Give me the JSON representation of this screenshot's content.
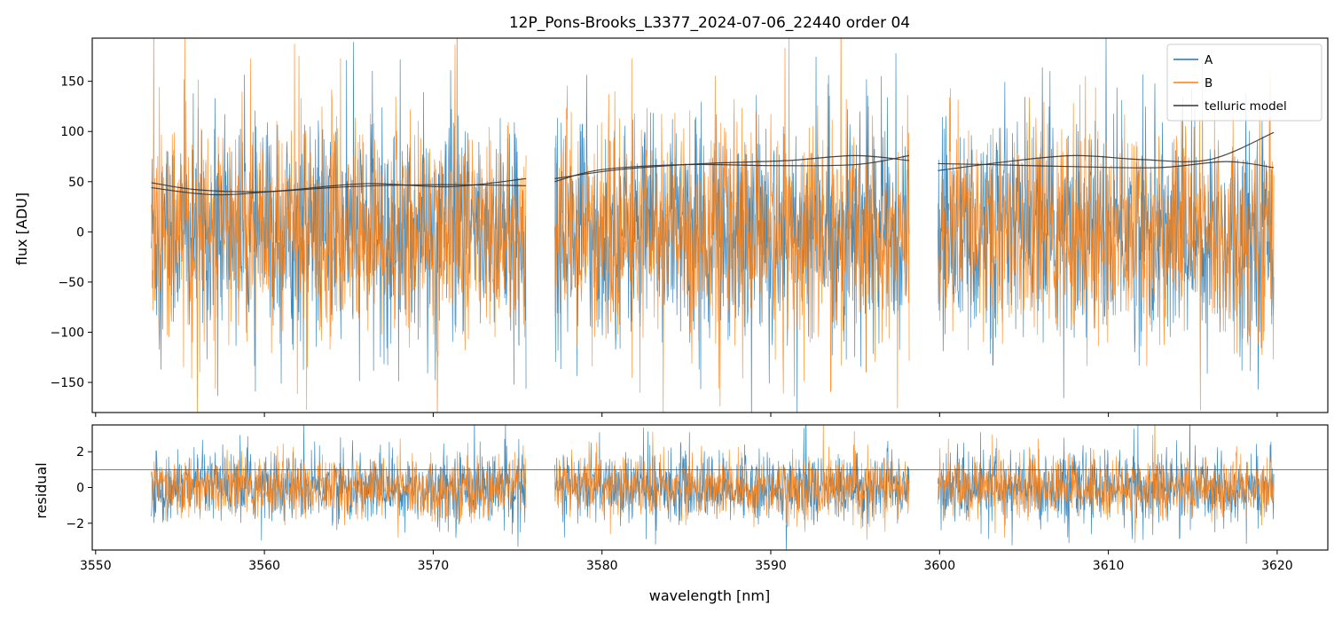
{
  "chart_data": {
    "type": "line",
    "title": "12P_Pons-Brooks_L3377_2024-07-06_22440  order 04",
    "xlabel": "wavelength [nm]",
    "xlim": [
      3549.8,
      3623.0
    ],
    "xticks": [
      3550,
      3560,
      3570,
      3580,
      3590,
      3600,
      3610,
      3620
    ],
    "xtick_labels": [
      "3550",
      "3560",
      "3570",
      "3580",
      "3590",
      "3600",
      "3610",
      "3620"
    ],
    "colors": {
      "A": "#1f77b4",
      "B": "#ff7f0e",
      "telluric": "#333333",
      "reference": "#555555"
    },
    "segments": [
      {
        "x_start": 3553.3,
        "x_end": 3575.5
      },
      {
        "x_start": 3577.2,
        "x_end": 3598.2
      },
      {
        "x_start": 3599.9,
        "x_end": 3619.8
      }
    ],
    "top": {
      "ylabel": "flux [ADU]",
      "ylim": [
        -180,
        193
      ],
      "yticks": [
        -150,
        -100,
        -50,
        0,
        50,
        100,
        150
      ],
      "ytick_labels": [
        "−150",
        "−100",
        "−50",
        "0",
        "50",
        "100",
        "150"
      ],
      "legend_position": "upper-right",
      "legend": [
        "A",
        "B",
        "telluric model"
      ],
      "series": [
        {
          "name": "A",
          "kind": "noise",
          "center": 0,
          "spread": 95,
          "color_key": "A"
        },
        {
          "name": "B",
          "kind": "noise",
          "center": 0,
          "spread": 95,
          "color_key": "B"
        },
        {
          "name": "telluric model",
          "kind": "curves",
          "color_key": "telluric",
          "curves": [
            {
              "x": [
                3553.3,
                3556,
                3560,
                3565,
                3570,
                3575.5
              ],
              "y": [
                49,
                42,
                40,
                45,
                47,
                46
              ]
            },
            {
              "x": [
                3553.3,
                3557,
                3561,
                3566,
                3571,
                3575.5
              ],
              "y": [
                44,
                37,
                41,
                48,
                45,
                53
              ]
            },
            {
              "x": [
                3577.2,
                3580,
                3585,
                3590,
                3595,
                3598.2
              ],
              "y": [
                50,
                62,
                67,
                66,
                67,
                76
              ]
            },
            {
              "x": [
                3577.2,
                3581,
                3586,
                3591,
                3595,
                3598.2
              ],
              "y": [
                53,
                62,
                68,
                71,
                76,
                71
              ]
            },
            {
              "x": [
                3599.9,
                3603,
                3608,
                3613,
                3617,
                3619.8
              ],
              "y": [
                68,
                67,
                65,
                64,
                70,
                64
              ]
            },
            {
              "x": [
                3599.9,
                3604,
                3608,
                3612,
                3616,
                3619.8
              ],
              "y": [
                61,
                70,
                76,
                72,
                72,
                99
              ]
            }
          ]
        }
      ]
    },
    "bottom": {
      "ylabel": "residual",
      "ylim": [
        -3.5,
        3.5
      ],
      "yticks": [
        -2,
        0,
        2
      ],
      "ytick_labels": [
        "−2",
        "0",
        "2"
      ],
      "reference_line": 1,
      "series": [
        {
          "name": "A",
          "kind": "noise",
          "center": 0,
          "spread": 1.7,
          "color_key": "A"
        },
        {
          "name": "B",
          "kind": "noise",
          "center": 0,
          "spread": 1.5,
          "color_key": "B"
        }
      ]
    }
  }
}
